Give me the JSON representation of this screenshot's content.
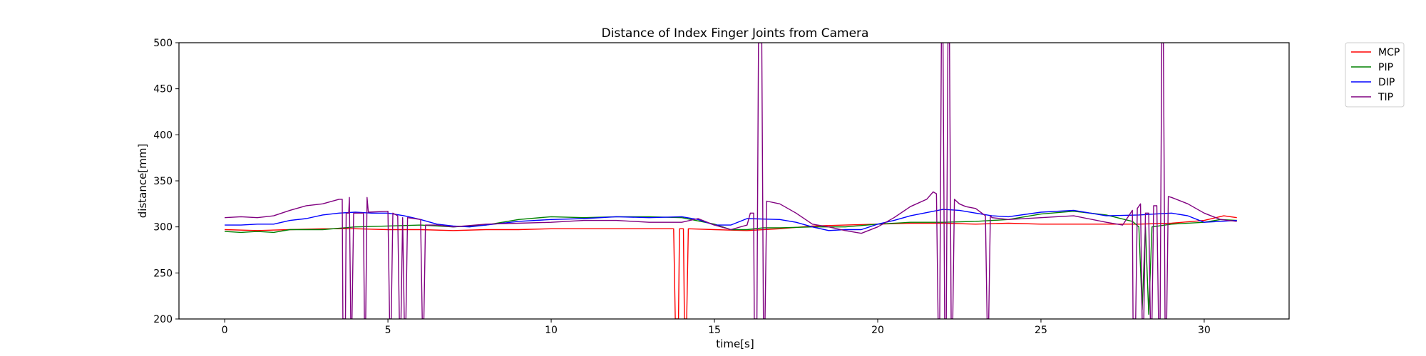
{
  "chart_data": {
    "type": "line",
    "title": "Distance of Index Finger Joints from Camera",
    "xlabel": "time[s]",
    "ylabel": "distance[mm]",
    "xlim": [
      -1.4,
      32.6
    ],
    "ylim": [
      200,
      500
    ],
    "xticks": [
      0,
      5,
      10,
      15,
      20,
      25,
      30
    ],
    "yticks": [
      200,
      250,
      300,
      350,
      400,
      450,
      500
    ],
    "grid": false,
    "legend_position": "outside-top-right",
    "series": [
      {
        "name": "MCP",
        "color": "#ff0000",
        "points": [
          [
            0,
            297
          ],
          [
            1,
            296
          ],
          [
            2,
            297
          ],
          [
            3,
            298
          ],
          [
            4,
            298
          ],
          [
            5,
            297
          ],
          [
            6,
            297
          ],
          [
            7,
            296
          ],
          [
            8,
            297
          ],
          [
            9,
            297
          ],
          [
            10,
            298
          ],
          [
            11,
            298
          ],
          [
            12,
            298
          ],
          [
            13,
            298
          ],
          [
            13.75,
            298
          ],
          [
            13.8,
            200
          ],
          [
            13.9,
            200
          ],
          [
            13.93,
            298
          ],
          [
            14.05,
            298
          ],
          [
            14.08,
            200
          ],
          [
            14.15,
            200
          ],
          [
            14.2,
            298
          ],
          [
            15,
            297
          ],
          [
            16,
            296
          ],
          [
            17,
            298
          ],
          [
            18,
            301
          ],
          [
            19,
            302
          ],
          [
            20,
            303
          ],
          [
            21,
            304
          ],
          [
            22,
            304
          ],
          [
            23,
            303
          ],
          [
            24,
            304
          ],
          [
            25,
            303
          ],
          [
            26,
            303
          ],
          [
            27,
            303
          ],
          [
            28,
            303
          ],
          [
            29,
            304
          ],
          [
            30,
            307
          ],
          [
            30.6,
            312
          ],
          [
            31,
            310
          ]
        ]
      },
      {
        "name": "PIP",
        "color": "#008000",
        "points": [
          [
            0,
            295
          ],
          [
            0.5,
            294
          ],
          [
            1,
            295
          ],
          [
            1.5,
            294
          ],
          [
            2,
            297
          ],
          [
            3,
            297
          ],
          [
            4,
            300
          ],
          [
            5,
            301
          ],
          [
            6,
            302
          ],
          [
            7,
            300
          ],
          [
            8,
            302
          ],
          [
            9,
            308
          ],
          [
            10,
            311
          ],
          [
            11,
            310
          ],
          [
            12,
            311
          ],
          [
            13,
            311
          ],
          [
            14,
            310
          ],
          [
            15,
            303
          ],
          [
            15.5,
            297
          ],
          [
            16,
            297
          ],
          [
            16.5,
            299
          ],
          [
            17,
            299
          ],
          [
            18,
            300
          ],
          [
            19,
            300
          ],
          [
            20,
            303
          ],
          [
            21,
            305
          ],
          [
            22,
            305
          ],
          [
            23,
            306
          ],
          [
            24,
            308
          ],
          [
            25,
            314
          ],
          [
            26,
            317
          ],
          [
            27,
            313
          ],
          [
            27.8,
            306
          ],
          [
            28,
            300
          ],
          [
            28.1,
            210
          ],
          [
            28.2,
            300
          ],
          [
            28.3,
            205
          ],
          [
            28.4,
            300
          ],
          [
            29,
            303
          ],
          [
            30,
            305
          ],
          [
            30.5,
            308
          ],
          [
            31,
            307
          ]
        ]
      },
      {
        "name": "DIP",
        "color": "#0000ff",
        "points": [
          [
            0,
            302
          ],
          [
            0.5,
            302
          ],
          [
            1,
            303
          ],
          [
            1.5,
            303
          ],
          [
            2,
            307
          ],
          [
            2.5,
            309
          ],
          [
            3,
            313
          ],
          [
            3.5,
            315
          ],
          [
            4,
            316
          ],
          [
            4.5,
            315
          ],
          [
            5,
            315
          ],
          [
            5.5,
            312
          ],
          [
            6,
            308
          ],
          [
            6.5,
            303
          ],
          [
            7,
            301
          ],
          [
            7.5,
            300
          ],
          [
            8,
            302
          ],
          [
            9,
            306
          ],
          [
            10,
            308
          ],
          [
            11,
            309
          ],
          [
            12,
            311
          ],
          [
            13,
            310
          ],
          [
            14,
            311
          ],
          [
            14.5,
            308
          ],
          [
            15,
            302
          ],
          [
            15.5,
            302
          ],
          [
            16,
            309
          ],
          [
            17,
            308
          ],
          [
            17.5,
            305
          ],
          [
            18,
            300
          ],
          [
            18.5,
            296
          ],
          [
            19,
            297
          ],
          [
            19.5,
            297
          ],
          [
            20,
            303
          ],
          [
            20.5,
            307
          ],
          [
            21,
            312
          ],
          [
            22,
            319
          ],
          [
            22.5,
            318
          ],
          [
            23,
            315
          ],
          [
            23.5,
            312
          ],
          [
            24,
            311
          ],
          [
            25,
            316
          ],
          [
            26,
            318
          ],
          [
            27,
            312
          ],
          [
            28,
            313
          ],
          [
            28.5,
            314
          ],
          [
            29,
            315
          ],
          [
            29.5,
            312
          ],
          [
            30,
            305
          ],
          [
            30.5,
            306
          ],
          [
            31,
            307
          ]
        ]
      },
      {
        "name": "TIP",
        "color": "#800080",
        "points": [
          [
            0,
            310
          ],
          [
            0.5,
            311
          ],
          [
            1,
            310
          ],
          [
            1.5,
            312
          ],
          [
            2,
            318
          ],
          [
            2.5,
            323
          ],
          [
            3,
            325
          ],
          [
            3.5,
            330
          ],
          [
            3.6,
            330
          ],
          [
            3.62,
            200
          ],
          [
            3.7,
            200
          ],
          [
            3.72,
            315
          ],
          [
            3.8,
            315
          ],
          [
            3.82,
            332
          ],
          [
            3.86,
            200
          ],
          [
            3.9,
            200
          ],
          [
            3.95,
            315
          ],
          [
            4.25,
            315
          ],
          [
            4.28,
            200
          ],
          [
            4.32,
            200
          ],
          [
            4.36,
            332
          ],
          [
            4.4,
            316
          ],
          [
            5,
            317
          ],
          [
            5.05,
            200
          ],
          [
            5.1,
            200
          ],
          [
            5.15,
            315
          ],
          [
            5.3,
            312
          ],
          [
            5.35,
            200
          ],
          [
            5.4,
            200
          ],
          [
            5.45,
            310
          ],
          [
            5.5,
            200
          ],
          [
            5.55,
            200
          ],
          [
            5.6,
            310
          ],
          [
            6,
            308
          ],
          [
            6.05,
            200
          ],
          [
            6.1,
            200
          ],
          [
            6.15,
            302
          ],
          [
            6.5,
            302
          ],
          [
            7,
            300
          ],
          [
            8,
            303
          ],
          [
            9,
            304
          ],
          [
            10,
            305
          ],
          [
            11,
            307
          ],
          [
            12,
            307
          ],
          [
            13,
            305
          ],
          [
            14,
            305
          ],
          [
            14.5,
            309
          ],
          [
            15,
            302
          ],
          [
            15.5,
            297
          ],
          [
            16,
            302
          ],
          [
            16.1,
            315
          ],
          [
            16.2,
            315
          ],
          [
            16.22,
            200
          ],
          [
            16.3,
            200
          ],
          [
            16.35,
            500
          ],
          [
            16.45,
            500
          ],
          [
            16.5,
            200
          ],
          [
            16.55,
            200
          ],
          [
            16.6,
            328
          ],
          [
            17,
            325
          ],
          [
            17.5,
            315
          ],
          [
            18,
            303
          ],
          [
            18.5,
            300
          ],
          [
            19,
            296
          ],
          [
            19.5,
            293
          ],
          [
            20,
            300
          ],
          [
            20.5,
            310
          ],
          [
            21,
            322
          ],
          [
            21.5,
            330
          ],
          [
            21.7,
            338
          ],
          [
            21.8,
            336
          ],
          [
            21.85,
            200
          ],
          [
            21.9,
            200
          ],
          [
            21.95,
            500
          ],
          [
            22.0,
            500
          ],
          [
            22.05,
            200
          ],
          [
            22.1,
            200
          ],
          [
            22.15,
            500
          ],
          [
            22.2,
            500
          ],
          [
            22.25,
            200
          ],
          [
            22.3,
            200
          ],
          [
            22.35,
            330
          ],
          [
            22.5,
            325
          ],
          [
            22.7,
            322
          ],
          [
            23,
            320
          ],
          [
            23.3,
            312
          ],
          [
            23.35,
            200
          ],
          [
            23.4,
            200
          ],
          [
            23.45,
            312
          ],
          [
            23.5,
            310
          ],
          [
            24,
            308
          ],
          [
            25,
            310
          ],
          [
            26,
            312
          ],
          [
            27,
            305
          ],
          [
            27.5,
            302
          ],
          [
            27.8,
            318
          ],
          [
            27.82,
            200
          ],
          [
            27.9,
            200
          ],
          [
            27.95,
            320
          ],
          [
            28.05,
            325
          ],
          [
            28.1,
            200
          ],
          [
            28.15,
            200
          ],
          [
            28.2,
            315
          ],
          [
            28.3,
            315
          ],
          [
            28.35,
            200
          ],
          [
            28.4,
            200
          ],
          [
            28.45,
            323
          ],
          [
            28.55,
            323
          ],
          [
            28.6,
            200
          ],
          [
            28.65,
            200
          ],
          [
            28.7,
            500
          ],
          [
            28.75,
            500
          ],
          [
            28.8,
            200
          ],
          [
            28.85,
            200
          ],
          [
            28.9,
            333
          ],
          [
            29,
            332
          ],
          [
            29.5,
            325
          ],
          [
            30,
            315
          ],
          [
            30.5,
            308
          ],
          [
            31,
            306
          ]
        ]
      }
    ]
  }
}
